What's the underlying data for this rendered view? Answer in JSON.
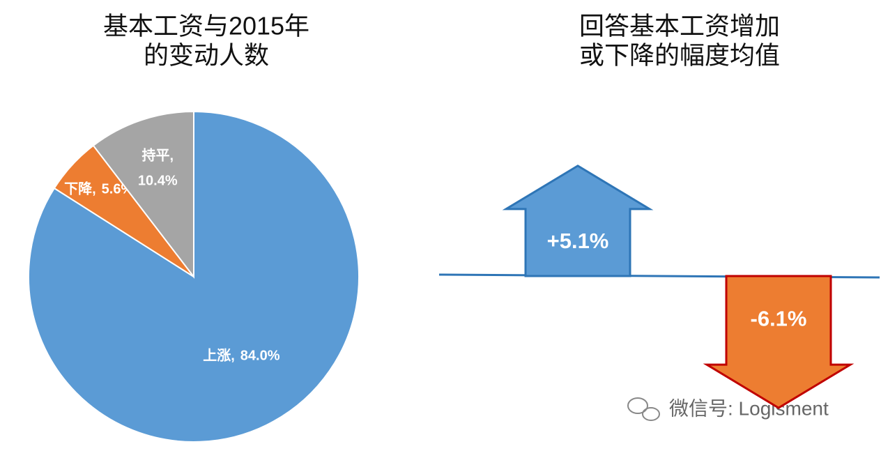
{
  "chart_data": [
    {
      "type": "pie",
      "title": [
        "基本工资与2015年",
        "的变动人数"
      ],
      "categories": [
        "上涨,",
        "下降,",
        "持平,"
      ],
      "values": [
        84.0,
        5.6,
        10.4
      ],
      "value_labels": [
        "84.0%",
        "5.6%",
        "10.4%"
      ],
      "colors": [
        "#5b9bd5",
        "#ed7d31",
        "#a5a5a5"
      ]
    },
    {
      "type": "arrow",
      "title": [
        "回答基本工资增加",
        "或下降的幅度均值"
      ],
      "values": [
        5.1,
        -6.1
      ],
      "value_labels": [
        "+5.1%",
        "-6.1%"
      ],
      "colors": [
        "#5b9bd5",
        "#ed7d31"
      ],
      "stroke_colors": [
        "#2e75b6",
        "#c00000"
      ]
    }
  ],
  "watermark": "微信号: Logisment"
}
